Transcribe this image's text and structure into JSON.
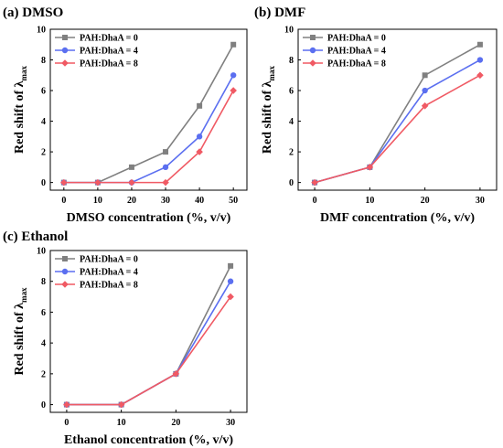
{
  "chart_data": [
    {
      "type": "line",
      "panel_label": "(a) DMSO",
      "xlabel": "DMSO concentration (%, v/v)",
      "ylabel": "Red shift of λ",
      "ylabel_subscript": "max",
      "x": [
        0,
        10,
        20,
        30,
        40,
        50
      ],
      "xlim": [
        -4,
        54
      ],
      "ylim": [
        -0.5,
        10
      ],
      "xticks": [
        0,
        10,
        20,
        30,
        40,
        50
      ],
      "yticks": [
        0,
        2,
        4,
        6,
        8,
        10
      ],
      "legend_position": "top-left",
      "series": [
        {
          "name": "PAH:DhaA = 0",
          "color": "#808080",
          "marker": "square",
          "values": [
            0,
            0,
            1,
            2,
            5,
            9
          ]
        },
        {
          "name": "PAH:DhaA = 4",
          "color": "#5b6ff0",
          "marker": "circle",
          "values": [
            0,
            0,
            0,
            1,
            3,
            7
          ]
        },
        {
          "name": "PAH:DhaA = 8",
          "color": "#f05a64",
          "marker": "diamond",
          "values": [
            0,
            0,
            0,
            0,
            2,
            6
          ]
        }
      ]
    },
    {
      "type": "line",
      "panel_label": "(b) DMF",
      "xlabel": "DMF concentration (%, v/v)",
      "ylabel": "Red shift of λ",
      "ylabel_subscript": "max",
      "x": [
        0,
        10,
        20,
        30
      ],
      "xlim": [
        -3,
        33
      ],
      "ylim": [
        -0.5,
        10
      ],
      "xticks": [
        0,
        10,
        20,
        30
      ],
      "yticks": [
        0,
        2,
        4,
        6,
        8,
        10
      ],
      "legend_position": "top-left",
      "series": [
        {
          "name": "PAH:DhaA = 0",
          "color": "#808080",
          "marker": "square",
          "values": [
            0,
            1,
            7,
            9
          ]
        },
        {
          "name": "PAH:DhaA = 4",
          "color": "#5b6ff0",
          "marker": "circle",
          "values": [
            0,
            1,
            6,
            8
          ]
        },
        {
          "name": "PAH:DhaA = 8",
          "color": "#f05a64",
          "marker": "diamond",
          "values": [
            0,
            1,
            5,
            7
          ]
        }
      ]
    },
    {
      "type": "line",
      "panel_label": "(c) Ethanol",
      "xlabel": "Ethanol concentration (%, v/v)",
      "ylabel": "Red shift of λ",
      "ylabel_subscript": "max",
      "x": [
        0,
        10,
        20,
        30
      ],
      "xlim": [
        -3,
        33
      ],
      "ylim": [
        -0.5,
        10
      ],
      "xticks": [
        0,
        10,
        20,
        30
      ],
      "yticks": [
        0,
        2,
        4,
        6,
        8,
        10
      ],
      "legend_position": "top-left",
      "series": [
        {
          "name": "PAH:DhaA = 0",
          "color": "#808080",
          "marker": "square",
          "values": [
            0,
            0,
            2,
            9
          ]
        },
        {
          "name": "PAH:DhaA = 4",
          "color": "#5b6ff0",
          "marker": "circle",
          "values": [
            0,
            0,
            2,
            8
          ]
        },
        {
          "name": "PAH:DhaA = 8",
          "color": "#f05a64",
          "marker": "diamond",
          "values": [
            0,
            0,
            2,
            7
          ]
        }
      ]
    }
  ]
}
